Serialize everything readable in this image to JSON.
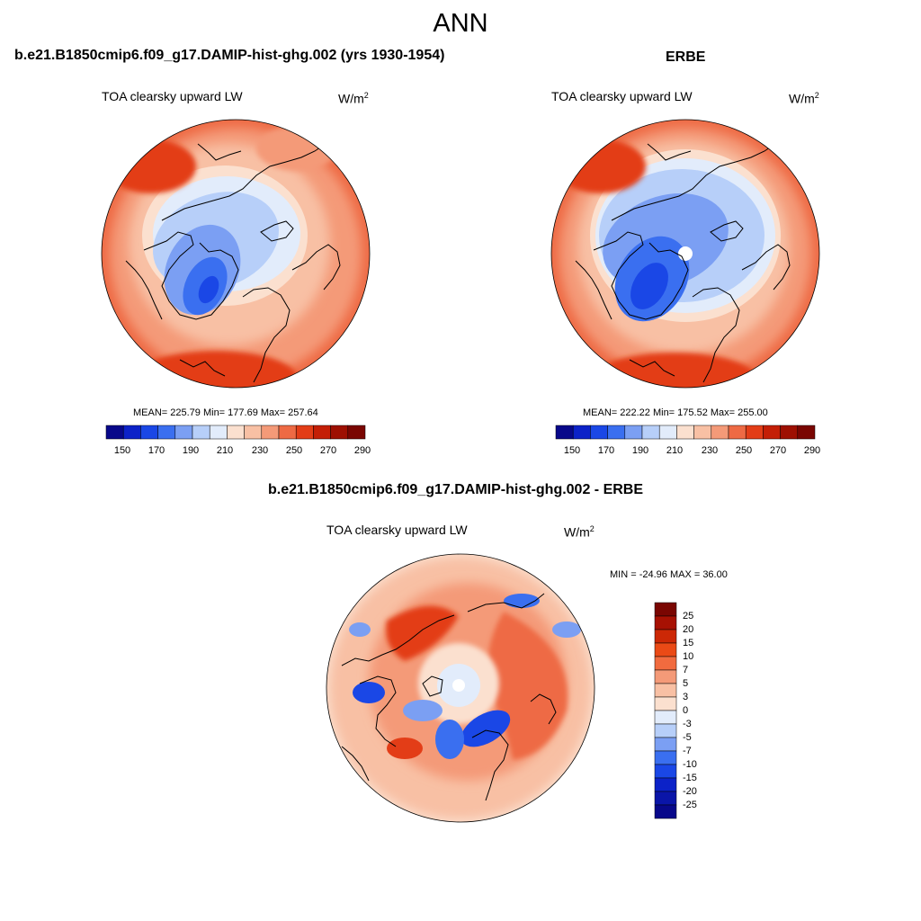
{
  "figure_title": "ANN",
  "panels": [
    {
      "case_title": "b.e21.B1850cmip6.f09_g17.DAMIP-hist-ghg.002 (yrs 1930-1954)",
      "variable": "TOA clearsky upward LW",
      "units_base": "W/m",
      "units_exp": "2",
      "stats": "MEAN= 225.79  Min= 177.69  Max= 257.64"
    },
    {
      "case_title": "ERBE",
      "variable": "TOA clearsky upward LW",
      "units_base": "W/m",
      "units_exp": "2",
      "stats": "MEAN= 222.22  Min= 175.52  Max= 255.00"
    }
  ],
  "diff_panel": {
    "case_title": "b.e21.B1850cmip6.f09_g17.DAMIP-hist-ghg.002 - ERBE",
    "variable": "TOA clearsky upward LW",
    "units_base": "W/m",
    "units_exp": "2",
    "stats": "MIN = -24.96 MAX =  36.00"
  },
  "colorbar_levels": [
    "150",
    "170",
    "190",
    "210",
    "230",
    "250",
    "270",
    "290"
  ],
  "colorbar_colors": [
    "#08088a",
    "#0c22c8",
    "#1a47e6",
    "#3a6ff0",
    "#7b9ff3",
    "#b7cff9",
    "#e2ecfb",
    "#fbe0cf",
    "#f8c0a4",
    "#f49a78",
    "#ee6a44",
    "#e33d17",
    "#c41f06",
    "#9e1002",
    "#7a0602"
  ],
  "diff_levels": [
    "25",
    "20",
    "15",
    "10",
    "7",
    "5",
    "3",
    "0",
    "-3",
    "-5",
    "-7",
    "-10",
    "-15",
    "-20",
    "-25"
  ],
  "diff_colors": [
    "#7a0602",
    "#a71103",
    "#cc2806",
    "#ea4a16",
    "#f16b3f",
    "#f49a78",
    "#f8c0a4",
    "#fbe0cf",
    "#e2ecfb",
    "#b7cff9",
    "#7b9ff3",
    "#3a6ff0",
    "#1a47e6",
    "#0c22c8",
    "#0a15a8",
    "#08088a"
  ]
}
